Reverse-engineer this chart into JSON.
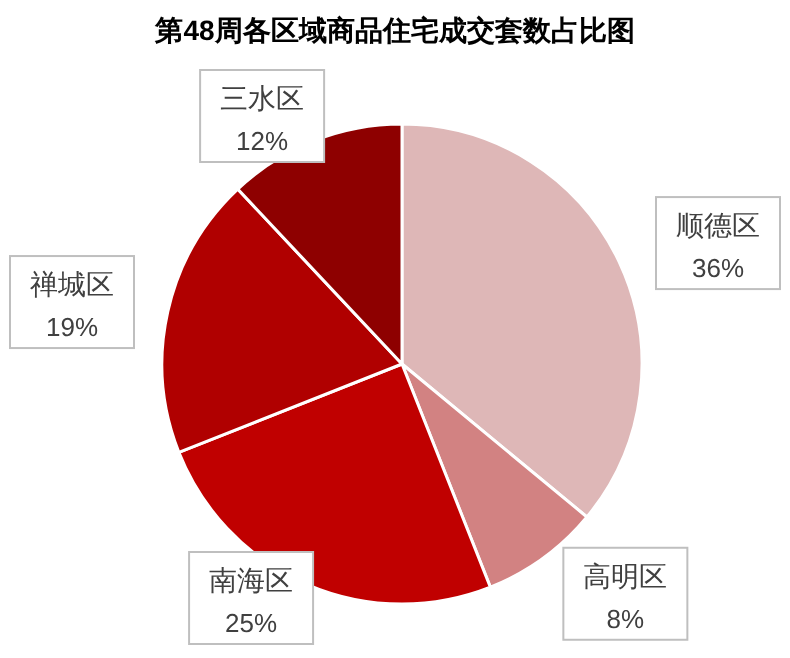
{
  "chart_data": {
    "type": "pie",
    "title": "第48周各区域商品住宅成交套数占比图",
    "categories": [
      "顺德区",
      "高明区",
      "南海区",
      "禅城区",
      "三水区"
    ],
    "values": [
      36,
      8,
      25,
      19,
      12
    ],
    "colors": [
      "#deb7b7",
      "#d28282",
      "#c00000",
      "#b00000",
      "#8e0000"
    ],
    "value_labels": [
      "36%",
      "8%",
      "25%",
      "19%",
      "12%"
    ]
  }
}
